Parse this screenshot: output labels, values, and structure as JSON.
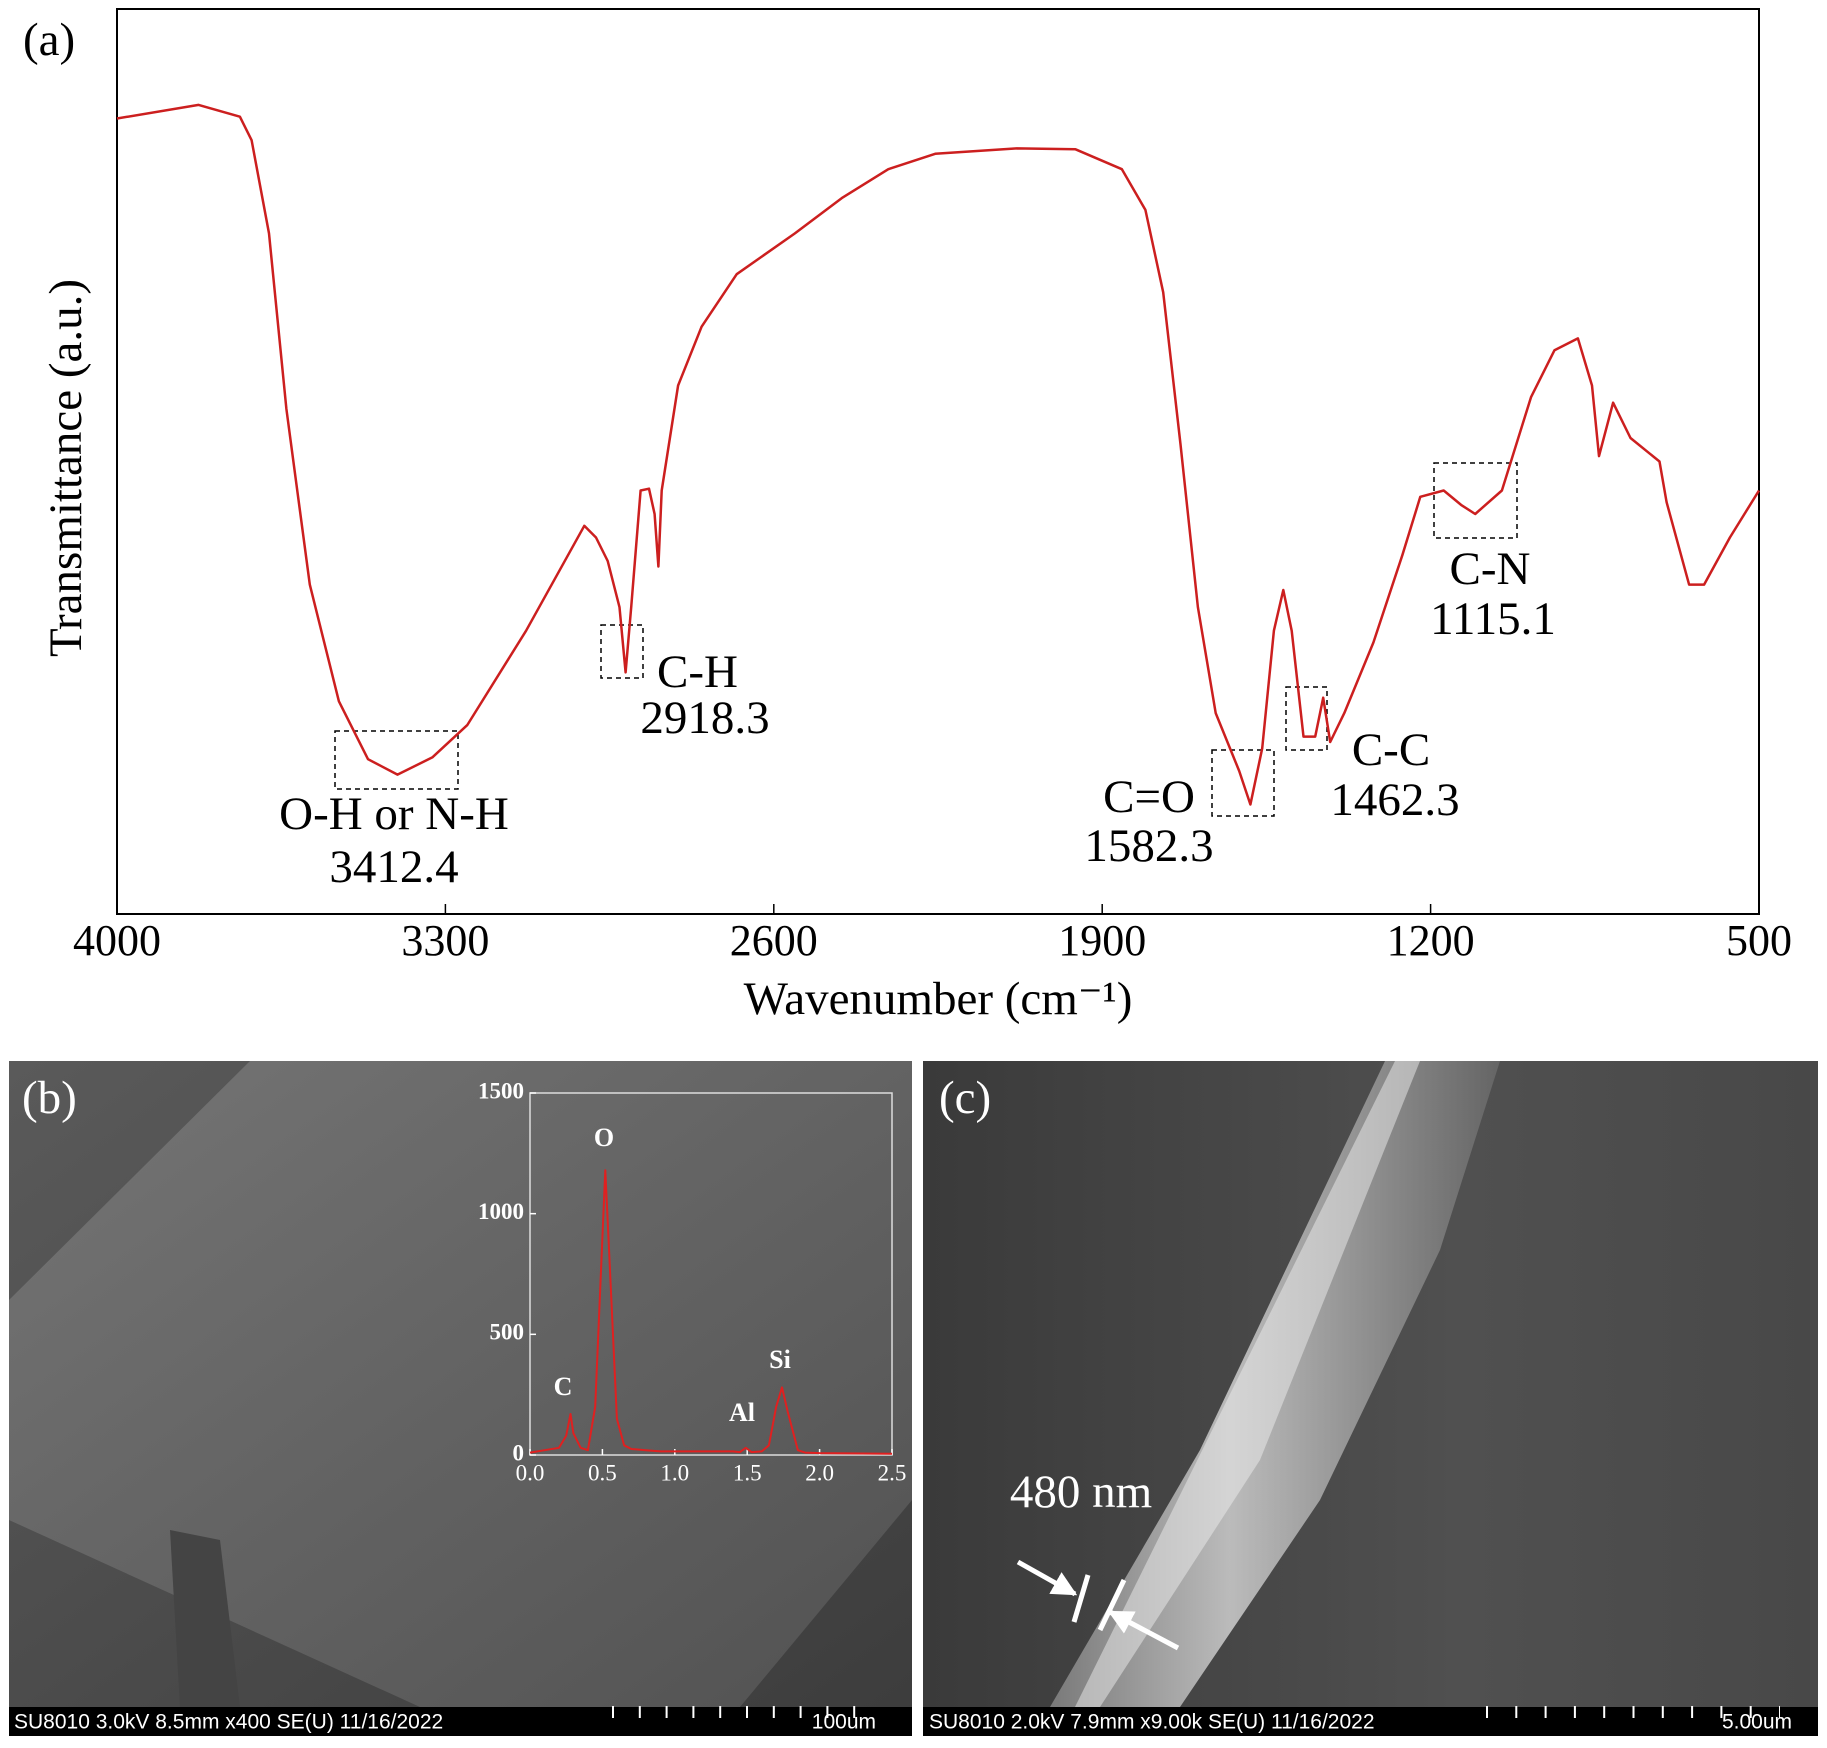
{
  "chart_data": [
    {
      "type": "line",
      "panel": "(a)",
      "xlabel": "Wavenumber (cm⁻¹)",
      "ylabel": "Transmittance (a.u.)",
      "xlim": [
        4000,
        500
      ],
      "xticks": [
        4000,
        3300,
        2600,
        1900,
        1200,
        500
      ],
      "ylim": [
        0,
        100
      ],
      "color": "#cc1f1f",
      "x": [
        4000,
        3826,
        3738,
        3713,
        3676,
        3639,
        3589,
        3527,
        3465,
        3402,
        3328,
        3253,
        3128,
        3004,
        2979,
        2954,
        2929,
        2916,
        2904,
        2884,
        2866,
        2854,
        2846,
        2839,
        2804,
        2754,
        2679,
        2555,
        2455,
        2356,
        2256,
        2082,
        1957,
        1858,
        1808,
        1770,
        1733,
        1696,
        1658,
        1608,
        1584,
        1559,
        1534,
        1514,
        1496,
        1471,
        1446,
        1429,
        1414,
        1384,
        1322,
        1260,
        1222,
        1172,
        1135,
        1105,
        1048,
        986,
        936,
        886,
        856,
        841,
        811,
        774,
        712,
        697,
        649,
        617,
        562,
        500
      ],
      "values": [
        87.9,
        89.4,
        88.1,
        85.5,
        75.2,
        55.8,
        36.4,
        23.5,
        17.1,
        15.4,
        17.3,
        20.9,
        31.3,
        42.9,
        41.6,
        39.0,
        33.9,
        26.7,
        33.9,
        46.8,
        47.0,
        44.2,
        38.4,
        46.8,
        58.4,
        64.9,
        70.7,
        75.2,
        79.1,
        82.3,
        84.0,
        84.6,
        84.5,
        82.3,
        77.8,
        68.7,
        51.9,
        33.9,
        22.2,
        15.8,
        12.1,
        18.3,
        31.3,
        35.8,
        31.3,
        19.6,
        19.6,
        23.9,
        19.0,
        22.2,
        30.0,
        39.7,
        46.1,
        46.8,
        45.2,
        44.2,
        46.8,
        57.1,
        62.3,
        63.6,
        58.4,
        50.6,
        56.5,
        52.6,
        50.0,
        45.5,
        36.4,
        36.4,
        41.6,
        46.8
      ],
      "annotations": [
        {
          "label": "O-H or N-H",
          "value": 3412.4
        },
        {
          "label": "C-H",
          "value": 2918.3
        },
        {
          "label": "C=O",
          "value": 1582.3
        },
        {
          "label": "C-C",
          "value": 1462.3
        },
        {
          "label": "C-N",
          "value": 1115.1
        }
      ]
    },
    {
      "type": "line",
      "panel": "(b)",
      "xlim": [
        0,
        2.5
      ],
      "xticks": [
        {
          "value": 0,
          "label": "0.0"
        },
        {
          "value": 0.5,
          "label": "0.5"
        },
        {
          "value": 1,
          "label": "1.0"
        },
        {
          "value": 1.5,
          "label": "1.5"
        },
        {
          "value": 2,
          "label": "2.0"
        },
        {
          "value": 2.5,
          "label": "2.5"
        }
      ],
      "ylim": [
        0,
        1500
      ],
      "yticks": [
        0,
        500,
        1000,
        1500
      ],
      "color": "#e02020",
      "x": [
        0,
        0.1,
        0.2,
        0.25,
        0.28,
        0.3,
        0.35,
        0.4,
        0.45,
        0.5,
        0.52,
        0.55,
        0.6,
        0.65,
        0.7,
        0.8,
        0.9,
        1.0,
        1.1,
        1.2,
        1.3,
        1.4,
        1.45,
        1.49,
        1.53,
        1.6,
        1.65,
        1.7,
        1.74,
        1.78,
        1.85,
        1.9,
        2.0,
        2.5
      ],
      "values": [
        10,
        20,
        30,
        80,
        170,
        90,
        30,
        20,
        200,
        900,
        1180,
        800,
        150,
        40,
        25,
        20,
        15,
        15,
        15,
        15,
        15,
        15,
        12,
        30,
        12,
        15,
        40,
        200,
        280,
        180,
        20,
        10,
        8,
        5
      ],
      "annotations": [
        {
          "label": "C",
          "x": 0.28
        },
        {
          "label": "O",
          "x": 0.52
        },
        {
          "label": "Al",
          "x": 1.49
        },
        {
          "label": "Si",
          "x": 1.74
        }
      ],
      "footer": "SU8010 3.0kV 8.5mm x400 SE(U) 11/16/2022",
      "scale": "100um"
    },
    {
      "type": "image",
      "panel": "(c)",
      "annotation": "480 nm",
      "footer": "SU8010 2.0kV 7.9mm x9.00k SE(U) 11/16/2022",
      "scale": "5.00um"
    }
  ]
}
